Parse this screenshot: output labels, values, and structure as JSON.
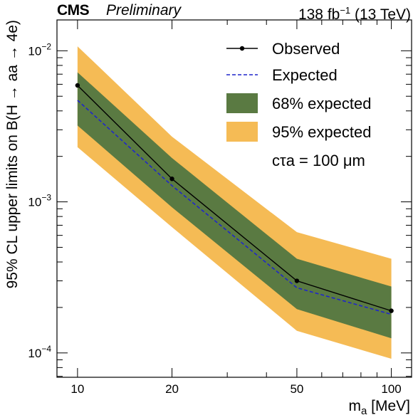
{
  "header": {
    "experiment": "CMS",
    "status": "Preliminary",
    "lumi_value": "138 fb",
    "lumi_exp": "−1",
    "energy": " (13 TeV)"
  },
  "chart_data": {
    "type": "line",
    "xlabel": "m_a [MeV]",
    "ylabel": "95% CL upper limits on B(H → aa → 4e)",
    "xscale": "log",
    "yscale": "log",
    "xlim": [
      8.6,
      116
    ],
    "ylim": [
      6.9e-05,
      0.016
    ],
    "x": [
      10,
      20,
      50,
      100
    ],
    "series": [
      {
        "name": "Observed",
        "values": [
          0.0059,
          0.00142,
          0.0003,
          0.00019
        ],
        "color": "#000000",
        "style": "solid",
        "markers": true
      },
      {
        "name": "Expected",
        "values": [
          0.0047,
          0.00128,
          0.00027,
          0.00018
        ],
        "color": "#1f25cc",
        "style": "dashed"
      }
    ],
    "bands": [
      {
        "name": "95% expected",
        "lower": [
          0.0023,
          0.00068,
          0.00014,
          9.15e-05
        ],
        "upper": [
          0.0107,
          0.0027,
          0.00063,
          0.00042
        ],
        "color": "#f5bb55"
      },
      {
        "name": "68% expected",
        "lower": [
          0.0032,
          0.00092,
          0.000195,
          0.000125
        ],
        "upper": [
          0.0072,
          0.00195,
          0.00042,
          0.000275
        ],
        "color": "#5a7a42"
      }
    ],
    "xticks": [
      {
        "value": 10,
        "label": "10"
      },
      {
        "value": 20,
        "label": "20"
      },
      {
        "value": 50,
        "label": "50"
      },
      {
        "value": 100,
        "label": "100"
      }
    ],
    "yticks": [
      {
        "value": 0.0001,
        "base": "10",
        "exp": "−4"
      },
      {
        "value": 0.001,
        "base": "10",
        "exp": "−3"
      },
      {
        "value": 0.01,
        "base": "10",
        "exp": "−2"
      }
    ],
    "legend": {
      "placement": "top-right",
      "entries": [
        {
          "label": "Observed",
          "kind": "line-marker"
        },
        {
          "label": "Expected",
          "kind": "dashed"
        },
        {
          "label": "68% expected",
          "kind": "box-68"
        },
        {
          "label": "95% expected",
          "kind": "box-95"
        }
      ],
      "annotation": "cτa = 100 μm"
    }
  }
}
